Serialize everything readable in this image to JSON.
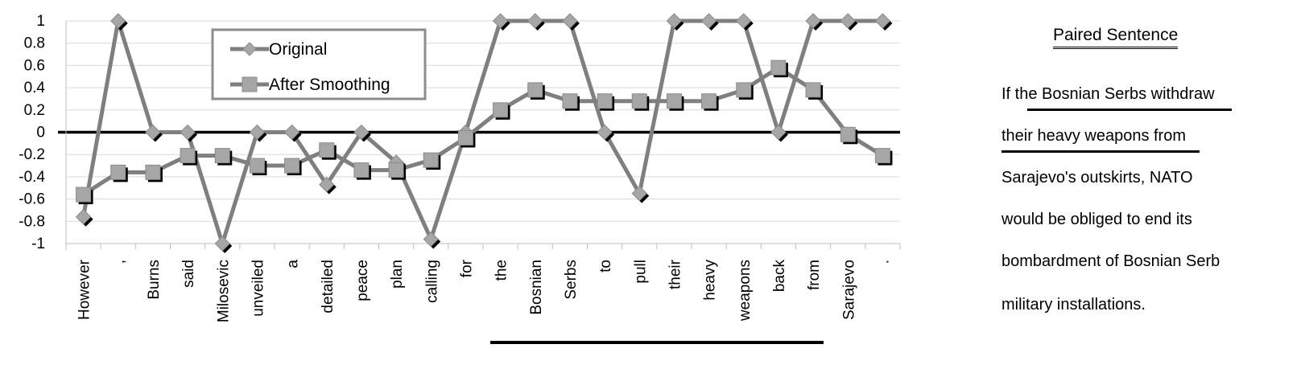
{
  "chart_data": {
    "type": "line",
    "categories": [
      "However",
      ",",
      "Burns",
      "said",
      "Milosevic",
      "unveiled",
      "a",
      "detailed",
      "peace",
      "plan",
      "calling",
      "for",
      "the",
      "Bosnian",
      "Serbs",
      "to",
      "pull",
      "their",
      "heavy",
      "weapons",
      "back",
      "from",
      "Sarajevo",
      "."
    ],
    "series": [
      {
        "name": "Original",
        "marker": "diamond",
        "values": [
          -0.76,
          1,
          0,
          0,
          -1,
          0,
          0,
          -0.47,
          0,
          -0.27,
          -0.96,
          0,
          1,
          1,
          1,
          0,
          -0.55,
          1,
          1,
          1,
          0,
          1,
          1,
          1
        ]
      },
      {
        "name": "After Smoothing",
        "marker": "square",
        "values": [
          -0.56,
          -0.36,
          -0.36,
          -0.21,
          -0.21,
          -0.3,
          -0.3,
          -0.16,
          -0.34,
          -0.34,
          -0.25,
          -0.05,
          0.2,
          0.38,
          0.28,
          0.28,
          0.28,
          0.28,
          0.28,
          0.38,
          0.58,
          0.38,
          -0.02,
          -0.21
        ]
      }
    ],
    "ylim": [
      -1,
      1
    ],
    "yticks": [
      "1",
      "0.8",
      "0.6",
      "0.4",
      "0.2",
      "0",
      "-0.2",
      "-0.4",
      "-0.6",
      "-0.8",
      "-1"
    ],
    "grid": true,
    "legend_position": "top-left-inside",
    "highlighted_range": [
      12,
      21
    ],
    "colors": {
      "line": "#7f7f7f",
      "marker_fill": "#a6a6a6",
      "marker_shadow": "#000000",
      "zero_line": "#000000",
      "grid": "#d9d9d9"
    }
  },
  "side_panel": {
    "title": "Paired Sentence",
    "lines": [
      "If the Bosnian Serbs withdraw",
      "their heavy weapons from",
      "Sarajevo's outskirts, NATO",
      "would be obliged to end its",
      "bombardment of Bosnian Serb",
      "military installations."
    ]
  }
}
